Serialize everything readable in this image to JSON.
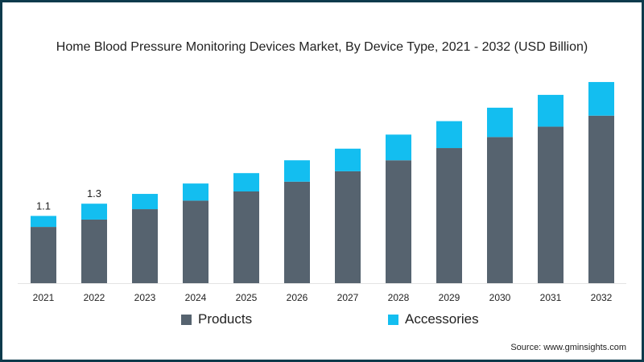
{
  "chart_data": {
    "type": "bar",
    "stacked": true,
    "title": "Home Blood Pressure Monitoring Devices Market, By Device Type, 2021 - 2032 (USD Billion)",
    "xlabel": "",
    "ylabel": "",
    "categories": [
      "2021",
      "2022",
      "2023",
      "2024",
      "2025",
      "2026",
      "2027",
      "2028",
      "2029",
      "2030",
      "2031",
      "2032"
    ],
    "series": [
      {
        "name": "Products",
        "color": "#56636f",
        "values": [
          0.92,
          1.04,
          1.21,
          1.35,
          1.5,
          1.66,
          1.83,
          2.01,
          2.21,
          2.39,
          2.56,
          2.74
        ]
      },
      {
        "name": "Accessories",
        "color": "#13bef0",
        "values": [
          0.18,
          0.26,
          0.25,
          0.28,
          0.3,
          0.35,
          0.37,
          0.42,
          0.44,
          0.48,
          0.52,
          0.55
        ]
      }
    ],
    "data_labels": [
      {
        "category": "2021",
        "text": "1.1"
      },
      {
        "category": "2022",
        "text": "1.3"
      }
    ],
    "ylim": [
      0,
      3.3
    ],
    "grid": false,
    "legend_position": "bottom"
  },
  "source": "Source: www.gminsights.com"
}
